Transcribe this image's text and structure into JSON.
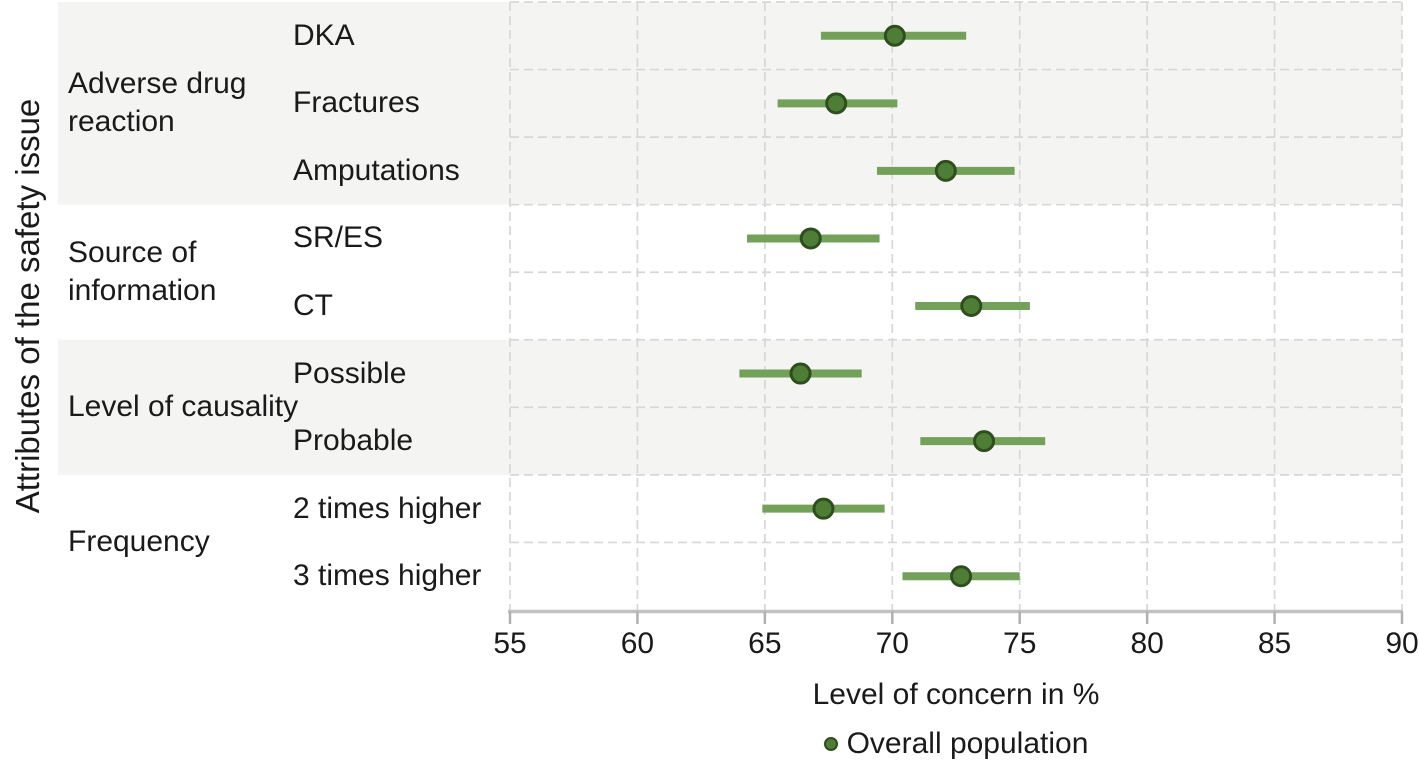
{
  "chart_data": {
    "type": "scatter",
    "subtype": "dot-with-error-bars-forest-plot",
    "orientation": "horizontal",
    "title": "",
    "xlabel": "Level of concern in %",
    "ylabel": "Attributes of the safety issue",
    "xlim": [
      55,
      90
    ],
    "xticks": [
      55,
      60,
      65,
      70,
      75,
      80,
      85,
      90
    ],
    "grid": "dashed-vertical-and-horizontal",
    "legend_position": "bottom-center",
    "groups": [
      {
        "label": "Adverse drug reaction",
        "shaded": true,
        "rows": [
          "DKA",
          "Fractures",
          "Amputations"
        ]
      },
      {
        "label": "Source of information",
        "shaded": false,
        "rows": [
          "SR/ES",
          "CT"
        ]
      },
      {
        "label": "Level of causality",
        "shaded": true,
        "rows": [
          "Possible",
          "Probable"
        ]
      },
      {
        "label": "Frequency",
        "shaded": false,
        "rows": [
          "2 times higher",
          "3 times higher"
        ]
      }
    ],
    "series": [
      {
        "name": "Overall population",
        "points": [
          {
            "label": "DKA",
            "value": 70.1,
            "ci_low": 67.2,
            "ci_high": 72.9
          },
          {
            "label": "Fractures",
            "value": 67.8,
            "ci_low": 65.5,
            "ci_high": 70.2
          },
          {
            "label": "Amputations",
            "value": 72.1,
            "ci_low": 69.4,
            "ci_high": 74.8
          },
          {
            "label": "SR/ES",
            "value": 66.8,
            "ci_low": 64.3,
            "ci_high": 69.5
          },
          {
            "label": "CT",
            "value": 73.1,
            "ci_low": 70.9,
            "ci_high": 75.4
          },
          {
            "label": "Possible",
            "value": 66.4,
            "ci_low": 64.0,
            "ci_high": 68.8
          },
          {
            "label": "Probable",
            "value": 73.6,
            "ci_low": 71.1,
            "ci_high": 76.0
          },
          {
            "label": "2 times higher",
            "value": 67.3,
            "ci_low": 64.9,
            "ci_high": 69.7
          },
          {
            "label": "3 times higher",
            "value": 72.7,
            "ci_low": 70.4,
            "ci_high": 75.0
          }
        ]
      }
    ]
  },
  "legend": {
    "label": "Overall population"
  },
  "colors": {
    "point_fill": "#4e7e36",
    "point_stroke": "#2f4e1e",
    "ci_line": "#74a15a",
    "band_shade": "#f4f4f3",
    "grid_line": "#d7d7d7",
    "axis_line": "#c2c2c2",
    "tick_mark": "#b0b0b0",
    "text": "#1a1a1a"
  }
}
